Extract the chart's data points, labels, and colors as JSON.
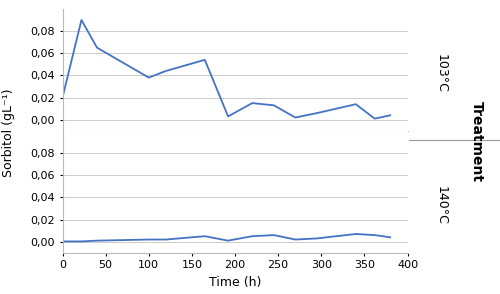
{
  "line1_x": [
    0,
    22,
    40,
    100,
    120,
    165,
    192,
    220,
    245,
    270,
    295,
    340,
    362,
    380
  ],
  "line1_y": [
    0.02,
    0.09,
    0.065,
    0.038,
    0.044,
    0.054,
    0.003,
    0.015,
    0.013,
    0.002,
    0.006,
    0.014,
    0.001,
    0.004
  ],
  "line2_x": [
    0,
    22,
    40,
    100,
    120,
    165,
    192,
    220,
    245,
    270,
    295,
    340,
    362,
    380
  ],
  "line2_y": [
    0.0003,
    0.0003,
    0.001,
    0.002,
    0.002,
    0.005,
    0.001,
    0.005,
    0.006,
    0.002,
    0.003,
    0.007,
    0.006,
    0.004
  ],
  "line_color": "#4472C4",
  "xlabel": "Time (h)",
  "ylabel": "Sorbitol (gL⁻¹)",
  "xlim": [
    0,
    400
  ],
  "ylim": [
    -0.01,
    0.1
  ],
  "yticks": [
    0.0,
    0.02,
    0.04,
    0.06,
    0.08
  ],
  "xticks": [
    0,
    50,
    100,
    150,
    200,
    250,
    300,
    350,
    400
  ],
  "grid_color": "#CCCCCC",
  "bg_color": "#FFFFFF",
  "right_panel_color": "#D8D4C8",
  "right_label_top": "103°C",
  "right_label_bottom": "140°C",
  "right_label_treatment": "Treatment",
  "label_fontsize": 9,
  "tick_fontsize": 8,
  "line_width": 1.3
}
